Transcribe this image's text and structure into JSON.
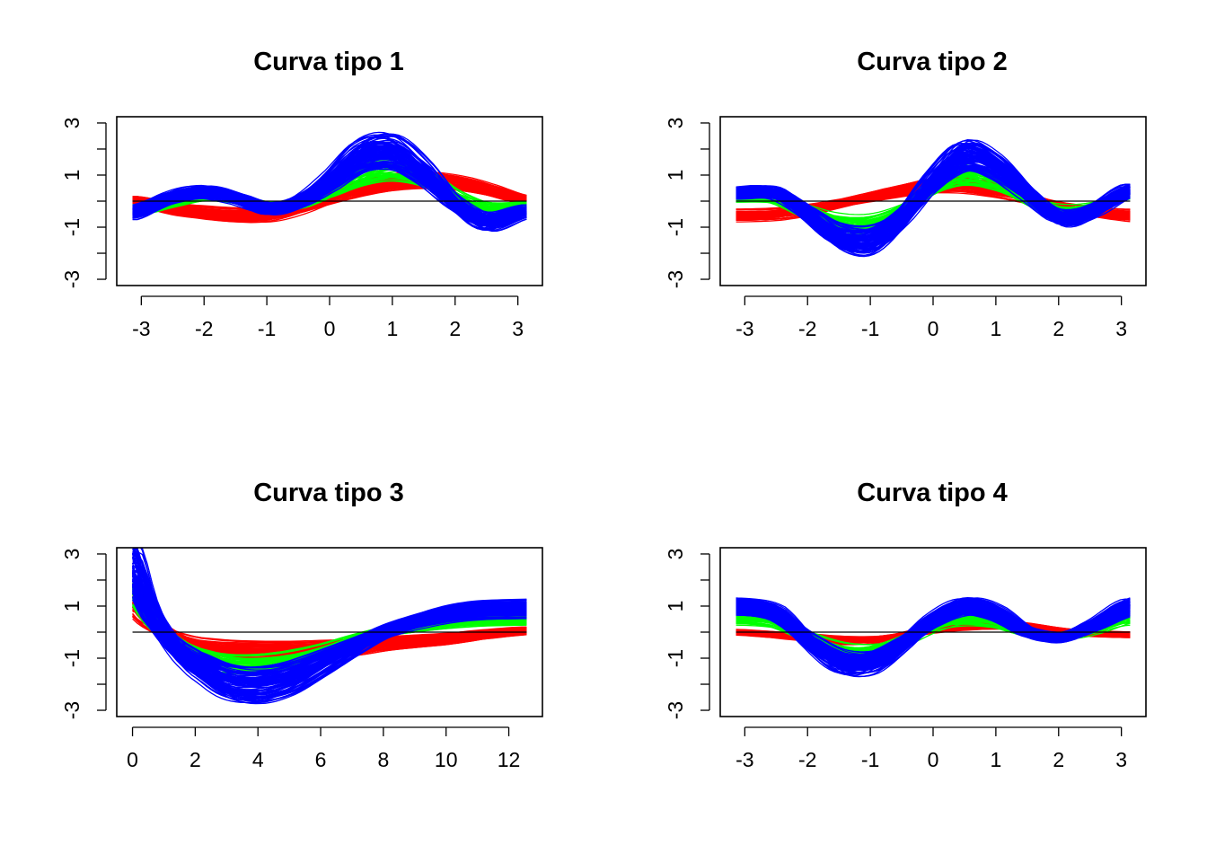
{
  "figure": {
    "background": "#ffffff"
  },
  "chart_data": [
    {
      "type": "line",
      "title": "Curva tipo 1",
      "xlabel": "",
      "ylabel": "",
      "x_ticks": [
        -3,
        -2,
        -1,
        0,
        1,
        2,
        3
      ],
      "y_ticks": [
        -3,
        -2,
        -1,
        0,
        1,
        2,
        3
      ],
      "y_tick_labels": [
        "-3",
        "",
        "-1",
        "",
        "1",
        "",
        "3"
      ],
      "xlim": [
        -3.14,
        3.14
      ],
      "ylim": [
        -3,
        3
      ],
      "reference_line": 0,
      "series": [
        {
          "color": "#ff0000",
          "curves": 60,
          "spread": 0.28,
          "x": [
            -3.14,
            -2.5,
            -2,
            -1.5,
            -1,
            -0.5,
            0,
            0.5,
            1,
            1.5,
            2,
            2.5,
            3.14
          ],
          "y": [
            0.05,
            -0.3,
            -0.45,
            -0.55,
            -0.55,
            -0.3,
            0.1,
            0.45,
            0.7,
            0.8,
            0.7,
            0.45,
            0.05
          ]
        },
        {
          "color": "#00ff00",
          "curves": 40,
          "spread": 0.28,
          "x": [
            -3.14,
            -2.5,
            -2,
            -1.5,
            -1,
            -0.5,
            0,
            0.5,
            1,
            1.5,
            2,
            2.5,
            3.14
          ],
          "y": [
            -0.35,
            -0.05,
            0.15,
            0.05,
            -0.2,
            -0.1,
            0.35,
            0.95,
            1.2,
            0.9,
            0.2,
            -0.25,
            -0.2
          ]
        },
        {
          "color": "#0000ff",
          "curves": 100,
          "spread": 0.35,
          "x": [
            -3.14,
            -2.5,
            -2,
            -1.5,
            -1,
            -0.5,
            0,
            0.5,
            1,
            1.5,
            2,
            2.5,
            3.14
          ],
          "y": [
            -0.45,
            0.15,
            0.35,
            0.1,
            -0.3,
            -0.05,
            0.75,
            1.75,
            1.9,
            1.1,
            -0.1,
            -0.8,
            -0.4
          ]
        }
      ]
    },
    {
      "type": "line",
      "title": "Curva tipo 2",
      "xlabel": "",
      "ylabel": "",
      "x_ticks": [
        -3,
        -2,
        -1,
        0,
        1,
        2,
        3
      ],
      "y_ticks": [
        -3,
        -2,
        -1,
        0,
        1,
        2,
        3
      ],
      "y_tick_labels": [
        "-3",
        "",
        "-1",
        "",
        "1",
        "",
        "3"
      ],
      "xlim": [
        -3.14,
        3.14
      ],
      "ylim": [
        -3,
        3
      ],
      "reference_line": 0,
      "series": [
        {
          "color": "#ff0000",
          "curves": 60,
          "spread": 0.25,
          "x": [
            -3.14,
            -2.5,
            -2,
            -1.5,
            -1,
            -0.5,
            0,
            0.5,
            1,
            1.5,
            2,
            2.5,
            3.14
          ],
          "y": [
            -0.55,
            -0.5,
            -0.35,
            -0.1,
            0.15,
            0.4,
            0.6,
            0.6,
            0.4,
            0.1,
            -0.2,
            -0.4,
            -0.55
          ]
        },
        {
          "color": "#00ff00",
          "curves": 40,
          "spread": 0.3,
          "x": [
            -3.14,
            -2.5,
            -2,
            -1.5,
            -1,
            -0.5,
            0,
            0.5,
            1,
            1.5,
            2,
            2.5,
            3.14
          ],
          "y": [
            0.1,
            0.05,
            -0.4,
            -0.85,
            -0.9,
            -0.4,
            0.45,
            0.95,
            0.7,
            0.1,
            -0.35,
            -0.3,
            0.25
          ]
        },
        {
          "color": "#0000ff",
          "curves": 100,
          "spread": 0.35,
          "x": [
            -3.14,
            -2.5,
            -2,
            -1.5,
            -1,
            -0.5,
            0,
            0.5,
            1,
            1.5,
            2,
            2.5,
            3.14
          ],
          "y": [
            0.3,
            0.3,
            -0.5,
            -1.4,
            -1.5,
            -0.6,
            0.75,
            1.7,
            1.3,
            0.3,
            -0.65,
            -0.4,
            0.4
          ]
        }
      ]
    },
    {
      "type": "line",
      "title": "Curva tipo 3",
      "xlabel": "",
      "ylabel": "",
      "x_ticks": [
        0,
        2,
        4,
        6,
        8,
        10,
        12
      ],
      "y_ticks": [
        -3,
        -2,
        -1,
        0,
        1,
        2,
        3
      ],
      "y_tick_labels": [
        "-3",
        "",
        "-1",
        "",
        "1",
        "",
        "3"
      ],
      "xlim": [
        0,
        12.57
      ],
      "ylim": [
        -3,
        3
      ],
      "reference_line": 0,
      "series": [
        {
          "color": "#ff0000",
          "curves": 60,
          "spread": 0.3,
          "x": [
            0,
            0.5,
            1,
            1.5,
            2,
            3,
            4,
            5,
            6,
            7,
            8,
            9,
            10,
            11,
            12.57
          ],
          "y": [
            1.1,
            0.45,
            0.0,
            -0.3,
            -0.5,
            -0.65,
            -0.7,
            -0.7,
            -0.65,
            -0.6,
            -0.45,
            -0.35,
            -0.25,
            -0.1,
            0.05
          ]
        },
        {
          "color": "#00ff00",
          "curves": 40,
          "spread": 0.3,
          "x": [
            0,
            0.5,
            1,
            1.5,
            2,
            3,
            4,
            5,
            6,
            7,
            8,
            9,
            10,
            11,
            12.57
          ],
          "y": [
            1.7,
            0.7,
            0.0,
            -0.5,
            -0.8,
            -1.15,
            -1.2,
            -1.05,
            -0.75,
            -0.35,
            0.0,
            0.2,
            0.35,
            0.45,
            0.5
          ]
        },
        {
          "color": "#0000ff",
          "curves": 100,
          "spread": 0.4,
          "x": [
            0,
            0.5,
            1,
            1.5,
            2,
            3,
            4,
            5,
            6,
            7,
            8,
            9,
            10,
            11,
            12.57
          ],
          "y": [
            2.6,
            1.0,
            0.0,
            -0.7,
            -1.2,
            -1.85,
            -2.0,
            -1.75,
            -1.2,
            -0.6,
            0.0,
            0.4,
            0.7,
            0.85,
            0.9
          ]
        }
      ]
    },
    {
      "type": "line",
      "title": "Curva tipo 4",
      "xlabel": "",
      "ylabel": "",
      "x_ticks": [
        -3,
        -2,
        -1,
        0,
        1,
        2,
        3
      ],
      "y_ticks": [
        -3,
        -2,
        -1,
        0,
        1,
        2,
        3
      ],
      "y_tick_labels": [
        "-3",
        "",
        "-1",
        "",
        "1",
        "",
        "3"
      ],
      "xlim": [
        -3.14,
        3.14
      ],
      "ylim": [
        -3,
        3
      ],
      "reference_line": 0,
      "series": [
        {
          "color": "#ff0000",
          "curves": 60,
          "spread": 0.22,
          "x": [
            -3.14,
            -2.5,
            -2,
            -1.5,
            -1,
            -0.5,
            0,
            0.5,
            1,
            1.5,
            2,
            2.5,
            3.14
          ],
          "y": [
            0.0,
            -0.1,
            -0.2,
            -0.3,
            -0.3,
            -0.15,
            0.1,
            0.25,
            0.3,
            0.2,
            0.05,
            -0.05,
            -0.1
          ]
        },
        {
          "color": "#00ff00",
          "curves": 40,
          "spread": 0.28,
          "x": [
            -3.14,
            -2.5,
            -2,
            -1.5,
            -1,
            -0.5,
            0,
            0.5,
            1,
            1.5,
            2,
            2.5,
            3.14
          ],
          "y": [
            0.55,
            0.4,
            -0.2,
            -0.65,
            -0.7,
            -0.35,
            0.2,
            0.5,
            0.4,
            0.0,
            -0.15,
            0.05,
            0.55
          ]
        },
        {
          "color": "#0000ff",
          "curves": 100,
          "spread": 0.3,
          "x": [
            -3.14,
            -2.5,
            -2,
            -1.5,
            -1,
            -0.5,
            0,
            0.5,
            1,
            1.5,
            2,
            2.5,
            3.14
          ],
          "y": [
            0.95,
            0.7,
            -0.3,
            -1.1,
            -1.15,
            -0.45,
            0.45,
            0.95,
            0.7,
            0.0,
            -0.2,
            0.2,
            0.95
          ]
        }
      ]
    }
  ]
}
